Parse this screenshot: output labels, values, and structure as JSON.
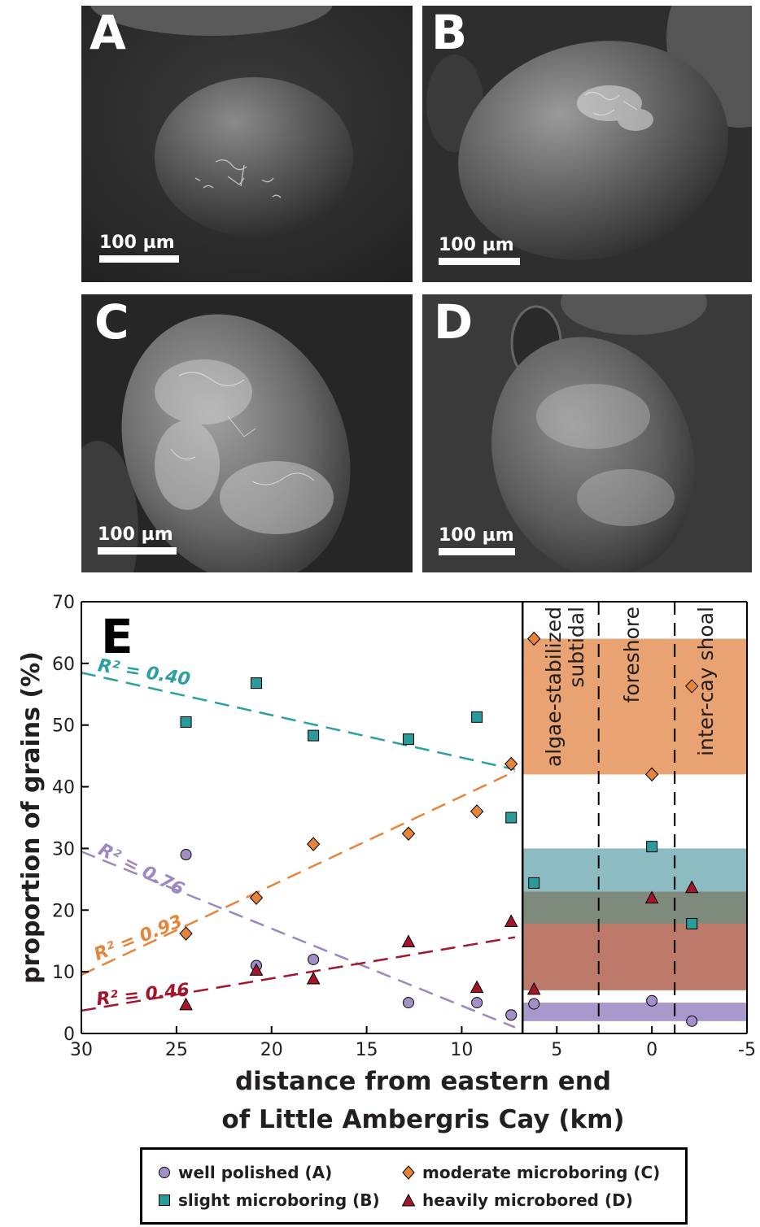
{
  "panels": [
    {
      "letter": "A",
      "scale_label": "100 µm"
    },
    {
      "letter": "B",
      "scale_label": "100 µm"
    },
    {
      "letter": "C",
      "scale_label": "100 µm"
    },
    {
      "letter": "D",
      "scale_label": "100 µm"
    }
  ],
  "chart_data": {
    "type": "scatter",
    "panel_letter": "E",
    "xlabel_line1": "distance from eastern end",
    "xlabel_line2": "of Little Ambergris Cay (km)",
    "ylabel": "proportion of grains (%)",
    "xlim": [
      30,
      -5
    ],
    "ylim": [
      0,
      70
    ],
    "x_ticks": [
      30,
      25,
      20,
      15,
      10,
      5,
      0,
      -5
    ],
    "y_ticks": [
      0,
      10,
      20,
      30,
      40,
      50,
      60,
      70
    ],
    "grid": false,
    "legend_position": "bottom",
    "series": [
      {
        "name": "well polished (A)",
        "marker": "circle",
        "color": "#a38fc7",
        "trend_color": "#9c86c4",
        "r2_label": "R² = 0.76",
        "points": [
          [
            24.5,
            29
          ],
          [
            20.8,
            11
          ],
          [
            17.8,
            12
          ],
          [
            12.8,
            5
          ],
          [
            9.2,
            5
          ],
          [
            7.4,
            3
          ]
        ],
        "trend": [
          [
            30,
            29.5
          ],
          [
            7.2,
            1
          ]
        ]
      },
      {
        "name": "slight microboring (B)",
        "marker": "square",
        "color": "#2a9a9a",
        "trend_color": "#2aa0a0",
        "r2_label": "R² = 0.40",
        "points": [
          [
            24.5,
            50.5
          ],
          [
            20.8,
            56.8
          ],
          [
            17.8,
            48.3
          ],
          [
            12.8,
            47.7
          ],
          [
            9.2,
            51.3
          ],
          [
            7.4,
            35
          ]
        ],
        "trend": [
          [
            30,
            58.5
          ],
          [
            7.2,
            42.8
          ]
        ]
      },
      {
        "name": "moderate microboring (C)",
        "marker": "diamond",
        "color": "#e8843a",
        "trend_color": "#e8843a",
        "r2_label": "R² = 0.93",
        "points": [
          [
            24.5,
            16.2
          ],
          [
            20.8,
            22
          ],
          [
            17.8,
            30.7
          ],
          [
            12.8,
            32.4
          ],
          [
            9.2,
            36
          ],
          [
            7.4,
            43.7
          ]
        ],
        "trend": [
          [
            30,
            9.5
          ],
          [
            7.2,
            42.5
          ]
        ]
      },
      {
        "name": "heavily microbored (D)",
        "marker": "triangle",
        "color": "#a3152a",
        "trend_color": "#a3152a",
        "r2_label": "R² = 0.46",
        "points": [
          [
            24.5,
            4.7
          ],
          [
            20.8,
            10.3
          ],
          [
            17.8,
            8.9
          ],
          [
            12.8,
            14.9
          ],
          [
            9.2,
            7.5
          ],
          [
            7.4,
            18.2
          ]
        ],
        "trend": [
          [
            30,
            3.7
          ],
          [
            7.2,
            15.6
          ]
        ]
      }
    ],
    "zones": [
      {
        "label": "algae-stabilized subtidal"
      },
      {
        "label": "foreshore"
      },
      {
        "label": "inter-cay shoal"
      }
    ],
    "zone_dividers_x": [
      2.8,
      -1.2
    ],
    "zone_panel_left_x": 6.8,
    "bands": [
      {
        "y0": 42,
        "y1": 64,
        "color": "#e9a272"
      },
      {
        "y0": 23,
        "y1": 30,
        "color": "#8cbcc2"
      },
      {
        "y0": 17.8,
        "y1": 23,
        "color": "#7e8a7c"
      },
      {
        "y0": 7,
        "y1": 17.8,
        "color": "#bd7a6a"
      },
      {
        "y0": 2,
        "y1": 5,
        "color": "#a898cb"
      }
    ],
    "zone_points": [
      {
        "marker": "diamond",
        "color": "#e8843a",
        "x": 6.2,
        "y": 64
      },
      {
        "marker": "diamond",
        "color": "#e8843a",
        "x": 0,
        "y": 42
      },
      {
        "marker": "diamond",
        "color": "#e8843a",
        "x": -2.1,
        "y": 56.3
      },
      {
        "marker": "square",
        "color": "#2a9a9a",
        "x": 6.2,
        "y": 24.4
      },
      {
        "marker": "square",
        "color": "#2a9a9a",
        "x": 0,
        "y": 30.3
      },
      {
        "marker": "square",
        "color": "#2a9a9a",
        "x": -2.1,
        "y": 17.8
      },
      {
        "marker": "triangle",
        "color": "#a3152a",
        "x": 6.2,
        "y": 7.2
      },
      {
        "marker": "triangle",
        "color": "#a3152a",
        "x": 0,
        "y": 22
      },
      {
        "marker": "triangle",
        "color": "#a3152a",
        "x": -2.1,
        "y": 23.7
      },
      {
        "marker": "circle",
        "color": "#a38fc7",
        "x": 6.2,
        "y": 4.8
      },
      {
        "marker": "circle",
        "color": "#a38fc7",
        "x": 0,
        "y": 5.3
      },
      {
        "marker": "circle",
        "color": "#a38fc7",
        "x": -2.1,
        "y": 2
      }
    ]
  },
  "legend": [
    {
      "label": "well polished (A)",
      "marker": "circle",
      "color": "#a38fc7"
    },
    {
      "label": "moderate microboring (C)",
      "marker": "diamond",
      "color": "#e8843a"
    },
    {
      "label": "slight microboring (B)",
      "marker": "square",
      "color": "#2a9a9a"
    },
    {
      "label": "heavily microbored (D)",
      "marker": "triangle",
      "color": "#a3152a"
    }
  ]
}
